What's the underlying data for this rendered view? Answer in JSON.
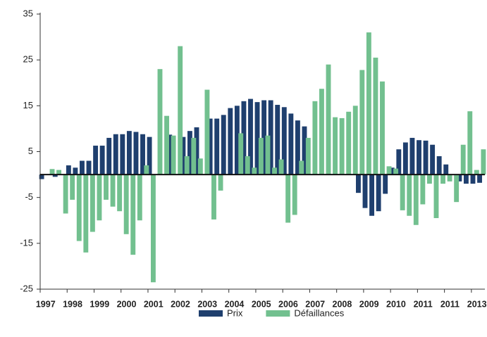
{
  "chart_data": {
    "type": "bar",
    "categories": [
      "1997",
      null,
      null,
      null,
      "1998",
      null,
      null,
      null,
      "1999",
      null,
      null,
      null,
      "2000",
      null,
      null,
      null,
      "2001",
      null,
      null,
      null,
      "2002",
      null,
      null,
      null,
      "2003",
      null,
      null,
      null,
      "2004",
      null,
      null,
      null,
      "2005",
      null,
      null,
      null,
      "2006",
      null,
      null,
      null,
      "2007",
      null,
      null,
      null,
      "2008",
      null,
      null,
      null,
      "2009",
      null,
      null,
      null,
      "2010",
      null,
      null,
      null,
      "2011",
      null,
      null,
      null,
      "2011",
      null,
      null,
      null,
      "2013",
      null
    ],
    "series": [
      {
        "name": "Prix",
        "color": "#1f3f6e",
        "values": [
          -1,
          0,
          -0.5,
          0,
          2,
          1.5,
          3,
          3,
          6.3,
          6.3,
          8,
          8.8,
          8.8,
          9.5,
          9.3,
          8.8,
          8.2,
          0,
          0,
          8.7,
          0,
          8.2,
          9.5,
          10.3,
          0,
          12.2,
          12.2,
          13,
          14.5,
          15,
          16,
          16.5,
          15.8,
          16.2,
          16.2,
          15.2,
          14.7,
          13.3,
          11.8,
          10.5,
          0,
          0,
          0,
          0,
          0,
          0,
          0,
          -4,
          -7.3,
          -9,
          -8,
          -4.2,
          1.5,
          5.5,
          7,
          8,
          7.5,
          7.4,
          6.5,
          4,
          2.2,
          0,
          -1.5,
          -2,
          -2,
          -1.8
        ]
      },
      {
        "name": "Défaillances",
        "color": "#72c08f",
        "values": [
          0,
          1.2,
          1,
          -8.5,
          -5.5,
          -14.5,
          -17,
          -12.5,
          -10,
          -5.5,
          -7,
          -8,
          -13,
          -17.5,
          -10,
          2,
          -23.5,
          23,
          12.8,
          8.5,
          28,
          4,
          8,
          3.5,
          18.5,
          -9.8,
          -3.5,
          0,
          0,
          9,
          4,
          1.5,
          8,
          8.5,
          1.5,
          3.3,
          -10.5,
          -8.8,
          3,
          8,
          16,
          18.7,
          24,
          12.5,
          12.3,
          13.7,
          15,
          22.8,
          31,
          25.5,
          20.3,
          1.8,
          1.3,
          -7.8,
          -9,
          -11,
          -6.5,
          -2,
          -9.5,
          -2,
          -1.5,
          -6,
          6.5,
          13.8,
          1,
          5.5
        ]
      }
    ],
    "ylim": [
      -25,
      35
    ],
    "yticks": [
      35,
      25,
      15,
      5,
      -5,
      -15,
      -25
    ]
  }
}
